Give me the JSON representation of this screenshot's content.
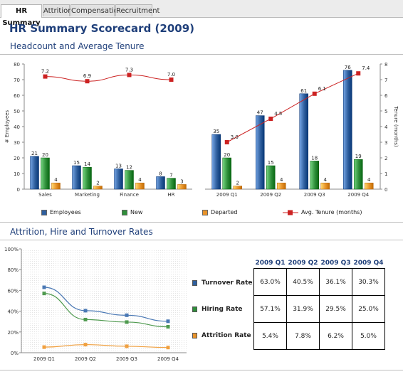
{
  "tabs": [
    {
      "label": "HR Summary",
      "active": true
    },
    {
      "label": "Attrition",
      "active": false
    },
    {
      "label": "Compensation",
      "active": false
    },
    {
      "label": "Recruitment",
      "active": false
    }
  ],
  "page_title": "HR Summary Scorecard (2009)",
  "sections": {
    "headcount": "Headcount and Average Tenure",
    "attrition": "Attrition, Hire and Turnover Rates"
  },
  "colors": {
    "employees": "#2f5f9e",
    "new": "#2f8f3a",
    "departed": "#e8932a",
    "tenure": "#cc2222",
    "turnover": "#4a78b4",
    "hiring": "#4f9a4f",
    "attrition": "#f0a040"
  },
  "chart_data": [
    {
      "type": "bar",
      "categories": [
        "Sales",
        "Marketing",
        "Finance",
        "HR",
        "2009 Q1",
        "2009 Q2",
        "2009 Q3",
        "2009 Q4"
      ],
      "series": [
        {
          "name": "Employees",
          "values": [
            21,
            15,
            13,
            8,
            35,
            47,
            61,
            76
          ]
        },
        {
          "name": "New",
          "values": [
            20,
            14,
            12,
            7,
            20,
            15,
            18,
            19
          ]
        },
        {
          "name": "Departed",
          "values": [
            4,
            2,
            4,
            3,
            2,
            4,
            4,
            4
          ]
        }
      ],
      "line_series": [
        {
          "name": "Avg. Tenure (months)",
          "axis": "right",
          "x": [
            "Sales",
            "Marketing",
            "Finance",
            "HR"
          ],
          "values": [
            7.2,
            6.9,
            7.3,
            7.0
          ]
        },
        {
          "name": "Avg. Tenure (months)",
          "axis": "right",
          "x": [
            "2009 Q1",
            "2009 Q2",
            "2009 Q3",
            "2009 Q4"
          ],
          "values": [
            3.0,
            4.5,
            6.1,
            7.4
          ]
        }
      ],
      "title": "",
      "ylabel": "# Employees",
      "ylabel_right": "Tenure (months)",
      "ylim": [
        0,
        80
      ],
      "yticks": [
        "0",
        "10",
        "20",
        "30",
        "40",
        "50",
        "60",
        "70",
        "80"
      ],
      "ylim_right": [
        0,
        8
      ],
      "yticks_right": [
        "0",
        "1",
        "2",
        "3",
        "4",
        "5",
        "6",
        "7",
        "8"
      ],
      "legend": [
        "Employees",
        "New",
        "Departed",
        "Avg. Tenure (months)"
      ],
      "legend_position": "bottom",
      "grid": false
    },
    {
      "type": "line",
      "x": [
        "2009 Q1",
        "2009 Q2",
        "2009 Q3",
        "2009 Q4"
      ],
      "series": [
        {
          "name": "Turnover Rate",
          "values": [
            63.0,
            40.5,
            36.1,
            30.3
          ]
        },
        {
          "name": "Hiring Rate",
          "values": [
            57.1,
            31.9,
            29.5,
            25.0
          ]
        },
        {
          "name": "Attrition Rate",
          "values": [
            5.4,
            7.8,
            6.2,
            5.0
          ]
        }
      ],
      "ylim": [
        0,
        100
      ],
      "yticks": [
        "0%",
        "20%",
        "40%",
        "60%",
        "80%",
        "100%"
      ],
      "grid": false,
      "legend_position": "right"
    }
  ],
  "rates_table": {
    "columns": [
      "2009 Q1",
      "2009 Q2",
      "2009 Q3",
      "2009 Q4"
    ],
    "rows": [
      {
        "label": "Turnover Rate",
        "values": [
          "63.0%",
          "40.5%",
          "36.1%",
          "30.3%"
        ]
      },
      {
        "label": "Hiring Rate",
        "values": [
          "57.1%",
          "31.9%",
          "29.5%",
          "25.0%"
        ]
      },
      {
        "label": "Attrition Rate",
        "values": [
          "5.4%",
          "7.8%",
          "6.2%",
          "5.0%"
        ]
      }
    ]
  }
}
